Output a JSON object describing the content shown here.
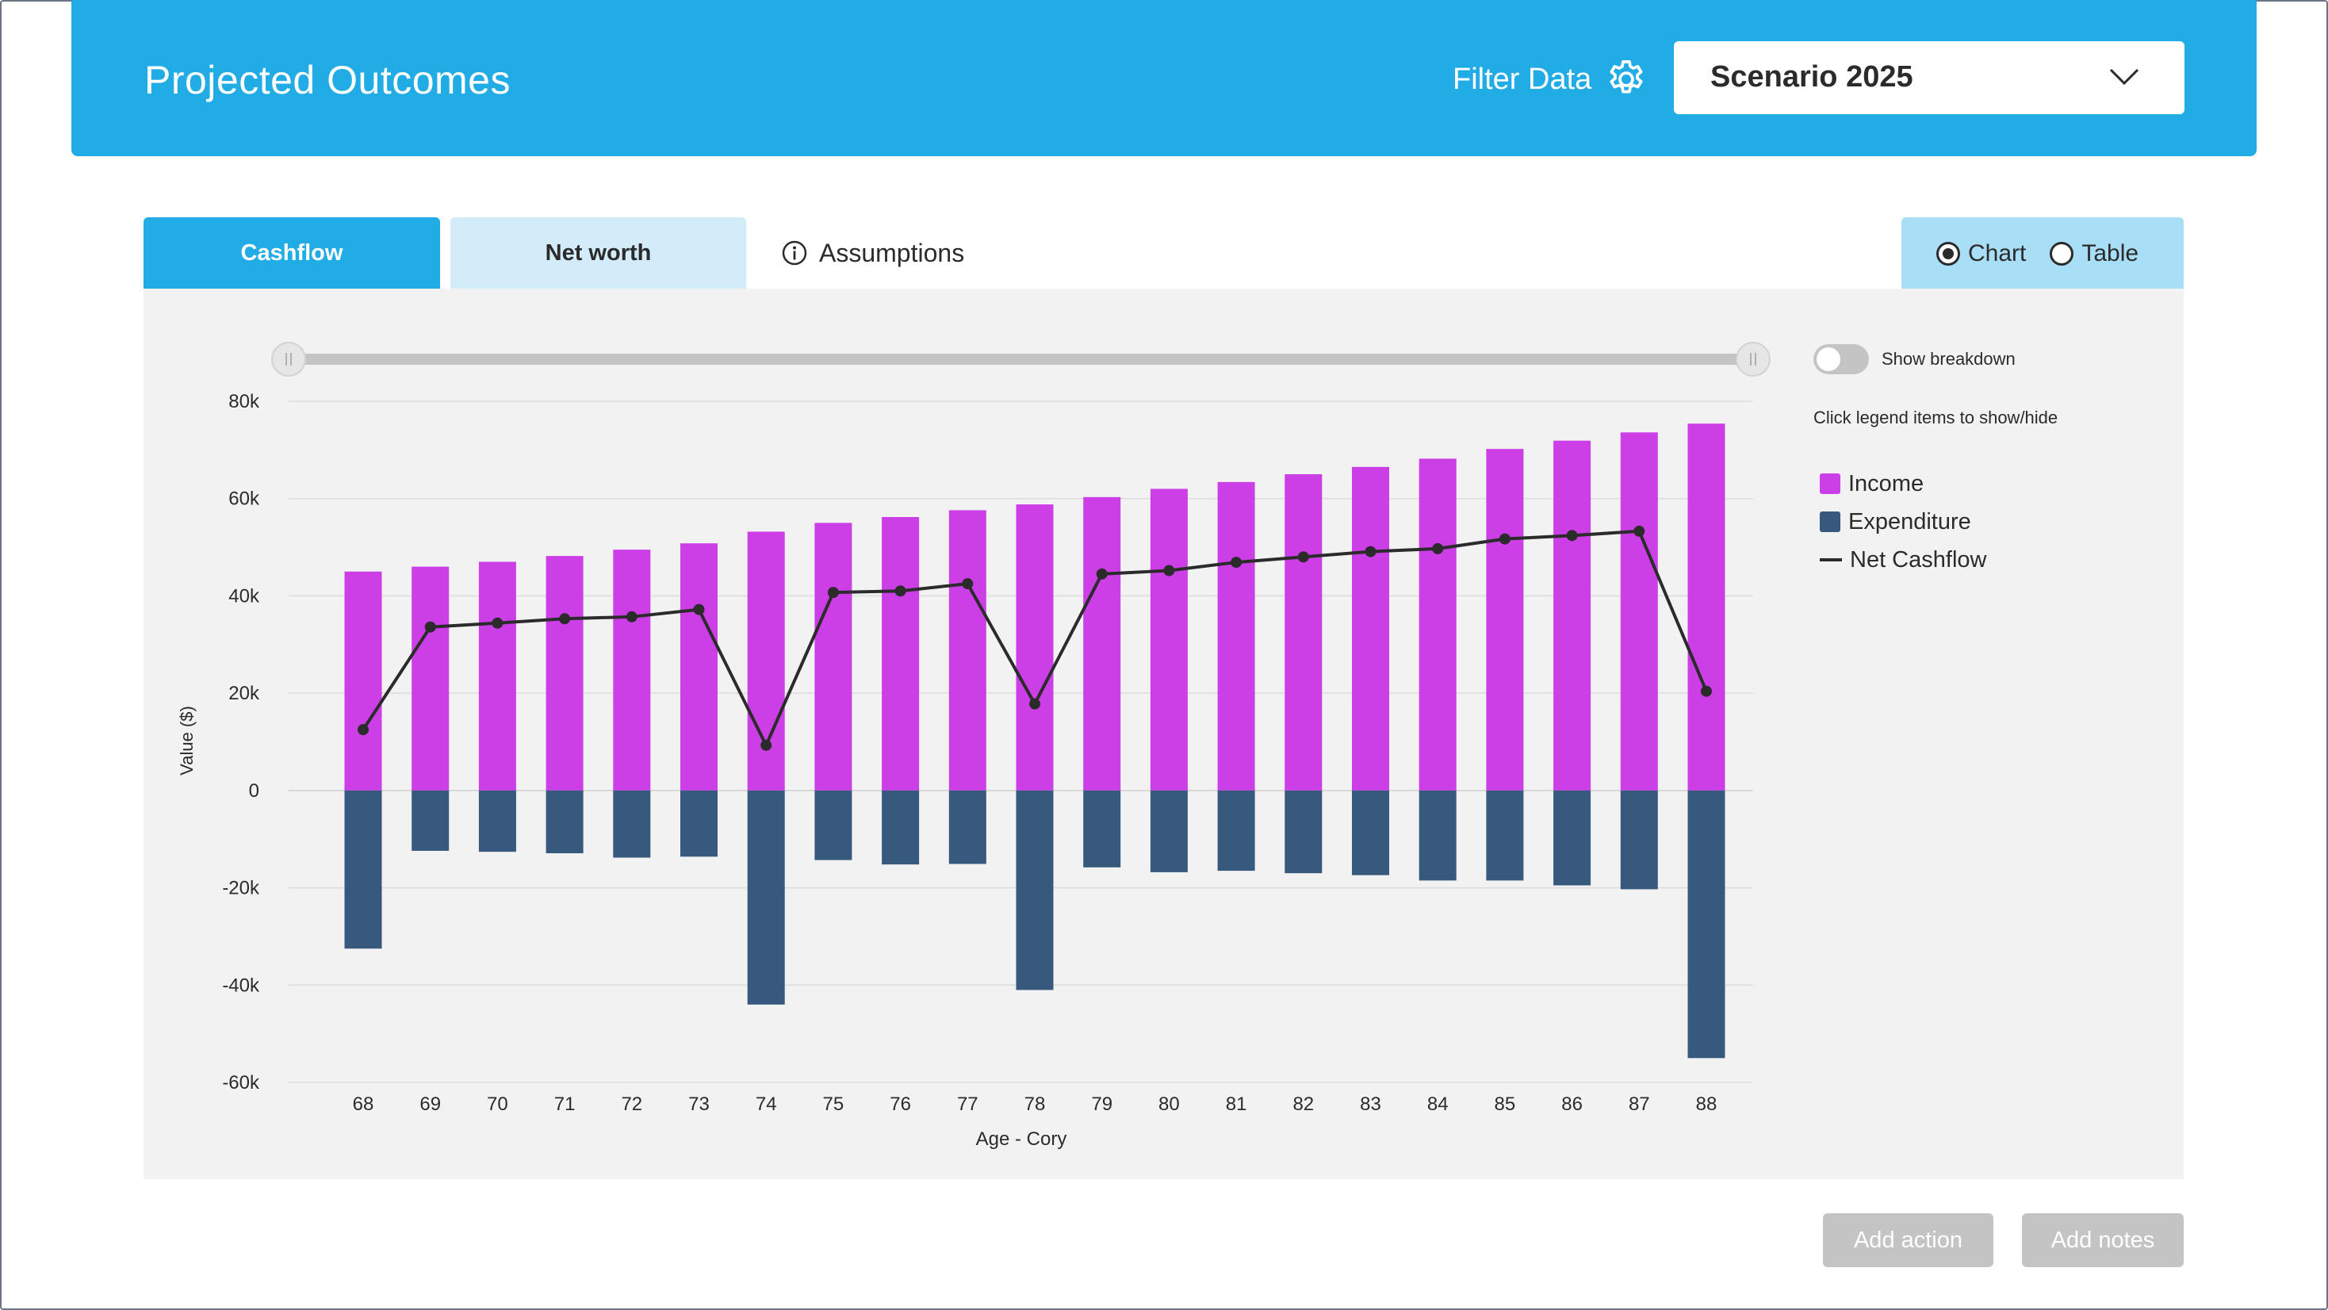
{
  "header": {
    "title": "Projected Outcomes",
    "filter_label": "Filter Data",
    "scenario_value": "Scenario 2025"
  },
  "tabs": [
    {
      "label": "Cashflow",
      "active": true
    },
    {
      "label": "Net worth",
      "active": false
    },
    {
      "label": "Assumptions",
      "active": false
    }
  ],
  "view_toggle": {
    "options": [
      {
        "label": "Chart",
        "selected": true
      },
      {
        "label": "Table",
        "selected": false
      }
    ]
  },
  "side": {
    "breakdown_label": "Show breakdown",
    "breakdown_on": false,
    "legend_hint": "Click legend items to show/hide",
    "legend": [
      {
        "label": "Income",
        "color": "#cc3fe6",
        "kind": "square"
      },
      {
        "label": "Expenditure",
        "color": "#36597d",
        "kind": "square"
      },
      {
        "label": "Net Cashflow",
        "color": "#2b2b2b",
        "kind": "line"
      }
    ]
  },
  "buttons": {
    "add_action": "Add action",
    "add_notes": "Add notes"
  },
  "chart_data": {
    "type": "bar",
    "xlabel": "Age - Cory",
    "ylabel": "Value ($)",
    "ylim": [
      -60000,
      80000
    ],
    "yticks": [
      80000,
      60000,
      40000,
      20000,
      0,
      -20000,
      -40000,
      -60000
    ],
    "ytick_labels": [
      "80k",
      "60k",
      "40k",
      "20k",
      "0",
      "-20k",
      "-40k",
      "-60k"
    ],
    "grid": true,
    "legend_position": "right",
    "categories": [
      "68",
      "69",
      "70",
      "71",
      "72",
      "73",
      "74",
      "75",
      "76",
      "77",
      "78",
      "79",
      "80",
      "81",
      "82",
      "83",
      "84",
      "85",
      "86",
      "87",
      "88"
    ],
    "series": [
      {
        "name": "Income",
        "kind": "bar",
        "color": "#cc3fe6",
        "values": [
          45000,
          46000,
          47000,
          48200,
          49500,
          50800,
          53200,
          55000,
          56200,
          57600,
          58800,
          60300,
          62000,
          63400,
          65000,
          66500,
          68200,
          70200,
          71900,
          73600,
          75400
        ]
      },
      {
        "name": "Expenditure",
        "kind": "bar",
        "color": "#36597d",
        "values": [
          -32500,
          -12400,
          -12600,
          -12900,
          -13800,
          -13600,
          -44000,
          -14300,
          -15200,
          -15100,
          -41000,
          -15800,
          -16800,
          -16500,
          -17000,
          -17400,
          -18500,
          -18500,
          -19500,
          -20300,
          -55000
        ]
      },
      {
        "name": "Net Cashflow",
        "kind": "line",
        "color": "#2b2b2b",
        "values": [
          12500,
          33600,
          34400,
          35300,
          35700,
          37200,
          9300,
          40700,
          41000,
          42500,
          17800,
          44500,
          45200,
          46900,
          48000,
          49100,
          49700,
          51700,
          52400,
          53300,
          20400
        ]
      }
    ]
  }
}
